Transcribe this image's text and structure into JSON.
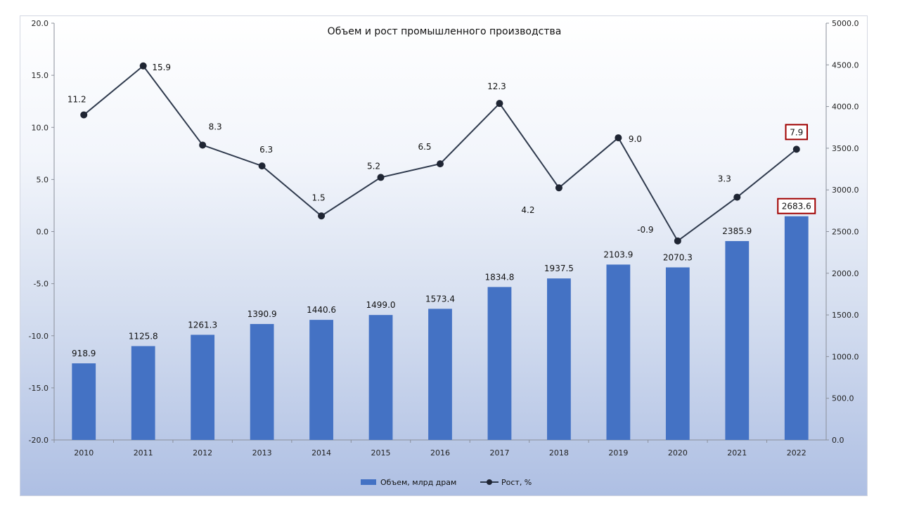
{
  "chart_data": {
    "type": "bar+line",
    "title": "Объем и рост промышленного производства",
    "categories": [
      "2010",
      "2011",
      "2012",
      "2013",
      "2014",
      "2015",
      "2016",
      "2017",
      "2018",
      "2019",
      "2020",
      "2021",
      "2022"
    ],
    "series": [
      {
        "name": "Объем, млрд драм",
        "type": "bar",
        "axis": "right",
        "color": "#4472c4",
        "values": [
          918.9,
          1125.8,
          1261.3,
          1390.9,
          1440.6,
          1499.0,
          1573.4,
          1834.8,
          1937.5,
          2103.9,
          2070.3,
          2385.9,
          2683.6
        ],
        "labels": [
          "918.9",
          "1125.8",
          "1261.3",
          "1390.9",
          "1440.6",
          "1499.0",
          "1573.4",
          "1834.8",
          "1937.5",
          "2103.9",
          "2070.3",
          "2385.9",
          "2683.6"
        ]
      },
      {
        "name": "Рост, %",
        "type": "line",
        "axis": "left",
        "color": "#2f3a4d",
        "values": [
          11.2,
          15.9,
          8.3,
          6.3,
          1.5,
          5.2,
          6.5,
          12.3,
          4.2,
          9.0,
          -0.9,
          3.3,
          7.9
        ],
        "labels": [
          "11.2",
          "15.9",
          "8.3",
          "6.3",
          "1.5",
          "5.2",
          "6.5",
          "12.3",
          "4.2",
          "9.0",
          "-0.9",
          "3.3",
          "7.9"
        ]
      }
    ],
    "y_left": {
      "range": [
        -20,
        20
      ],
      "ticks": [
        "20.0",
        "15.0",
        "10.0",
        "5.0",
        "0.0",
        "-5.0",
        "-10.0",
        "-15.0",
        "-20.0"
      ]
    },
    "y_right": {
      "range": [
        0,
        5000
      ],
      "ticks": [
        "5000.0",
        "4500.0",
        "4000.0",
        "3500.0",
        "3000.0",
        "2500.0",
        "2000.0",
        "1500.0",
        "1000.0",
        "500.0",
        "0.0"
      ]
    },
    "highlighted_labels": [
      "2022"
    ],
    "highlight_color": "#a00000",
    "grid": false,
    "legend_position": "bottom"
  }
}
